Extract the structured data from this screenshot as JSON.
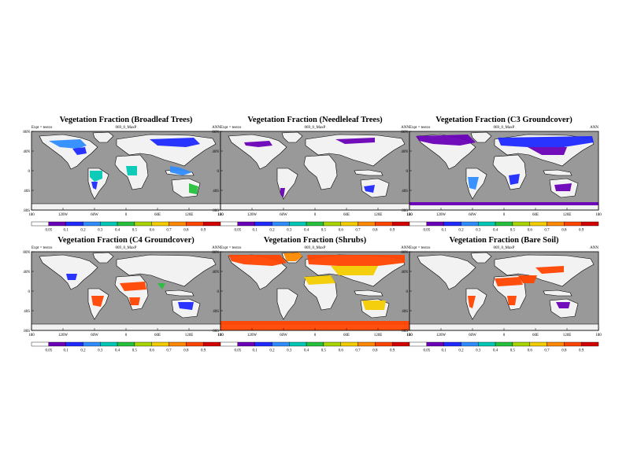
{
  "chart_data": [
    {
      "type": "heatmap",
      "title": "Vegetation Fraction (Broadleaf Trees)",
      "experiment": "Expt = testco",
      "case": "069_0_MaxP",
      "season": "ANN",
      "xlabel": "",
      "ylabel": "",
      "lon_ticks": [
        "180",
        "120W",
        "60W",
        "0",
        "60E",
        "120E",
        "180"
      ],
      "lat_ticks": [
        "80N",
        "40N",
        "0",
        "40S",
        "80S"
      ],
      "colorbar_levels": [
        "0.05",
        "0.1",
        "0.2",
        "0.3",
        "0.4",
        "0.5",
        "0.6",
        "0.7",
        "0.8",
        "0.9"
      ]
    },
    {
      "type": "heatmap",
      "title": "Vegetation Fraction (Needleleaf Trees)",
      "experiment": "Expt = testco",
      "case": "069_0_MaxP",
      "season": "ANN",
      "xlabel": "",
      "ylabel": "",
      "lon_ticks": [
        "180",
        "120W",
        "60W",
        "0",
        "60E",
        "120E",
        "180"
      ],
      "lat_ticks": [
        "80N",
        "40N",
        "0",
        "40S",
        "80S"
      ],
      "colorbar_levels": [
        "0.05",
        "0.1",
        "0.2",
        "0.3",
        "0.4",
        "0.5",
        "0.6",
        "0.7",
        "0.8",
        "0.9"
      ]
    },
    {
      "type": "heatmap",
      "title": "Vegetation Fraction (C3 Groundcover)",
      "experiment": "Expt = testco",
      "case": "069_0_MaxP",
      "season": "ANN",
      "xlabel": "",
      "ylabel": "",
      "lon_ticks": [
        "180",
        "120W",
        "60W",
        "0",
        "60E",
        "120E",
        "180"
      ],
      "lat_ticks": [
        "80N",
        "40N",
        "0",
        "40S",
        "80S"
      ],
      "colorbar_levels": [
        "0.05",
        "0.1",
        "0.2",
        "0.3",
        "0.4",
        "0.5",
        "0.6",
        "0.7",
        "0.8",
        "0.9"
      ]
    },
    {
      "type": "heatmap",
      "title": "Vegetation Fraction (C4 Groundcover)",
      "experiment": "Expt = testco",
      "case": "069_0_MaxP",
      "season": "ANN",
      "xlabel": "",
      "ylabel": "",
      "lon_ticks": [
        "180",
        "120W",
        "60W",
        "0",
        "60E",
        "120E",
        "180"
      ],
      "lat_ticks": [
        "80N",
        "40N",
        "0",
        "40S",
        "80S"
      ],
      "colorbar_levels": [
        "0.05",
        "0.1",
        "0.2",
        "0.3",
        "0.4",
        "0.5",
        "0.6",
        "0.7",
        "0.8",
        "0.9"
      ]
    },
    {
      "type": "heatmap",
      "title": "Vegetation Fraction (Shrubs)",
      "experiment": "Expt = testco",
      "case": "069_0_MaxP",
      "season": "ANN",
      "xlabel": "",
      "ylabel": "",
      "lon_ticks": [
        "180",
        "120W",
        "60W",
        "0",
        "60E",
        "120E",
        "180"
      ],
      "lat_ticks": [
        "80N",
        "40N",
        "0",
        "40S",
        "80S"
      ],
      "colorbar_levels": [
        "0.05",
        "0.1",
        "0.2",
        "0.3",
        "0.4",
        "0.5",
        "0.6",
        "0.7",
        "0.8",
        "0.9"
      ]
    },
    {
      "type": "heatmap",
      "title": "Vegetation Fraction (Bare Soil)",
      "experiment": "Expt = testco",
      "case": "069_0_MaxP",
      "season": "ANN",
      "xlabel": "",
      "ylabel": "",
      "lon_ticks": [
        "180",
        "120W",
        "60W",
        "0",
        "60E",
        "120E",
        "180"
      ],
      "lat_ticks": [
        "80N",
        "40N",
        "0",
        "40S",
        "80S"
      ],
      "colorbar_levels": [
        "0.05",
        "0.1",
        "0.2",
        "0.3",
        "0.4",
        "0.5",
        "0.6",
        "0.7",
        "0.8",
        "0.9"
      ]
    }
  ],
  "colors": {
    "ocean": "#999999",
    "land": "#f2f2f2",
    "coast": "#000000",
    "colorbar": [
      "#ffffff",
      "#6a00b8",
      "#1e2aff",
      "#2f8cff",
      "#00c8b4",
      "#25c03c",
      "#a8d400",
      "#f2cc00",
      "#ff8800",
      "#ff4400",
      "#d40000"
    ]
  }
}
